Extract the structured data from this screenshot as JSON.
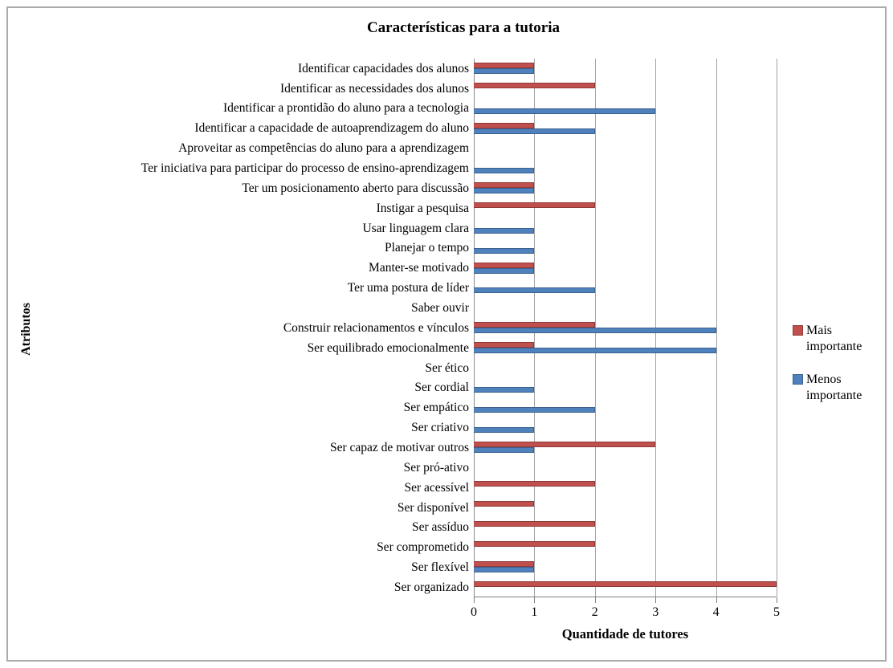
{
  "frame": {
    "background": "#ffffff",
    "border_color": "#ababab",
    "gridline_color": "#a3a3a3",
    "axis_color": "#7f7f7f"
  },
  "chart_data": {
    "type": "bar",
    "orientation": "horizontal",
    "title": "Características para a tutoria",
    "xlabel": "Quantidade de tutores",
    "ylabel": "Atributos",
    "xlim": [
      0,
      5
    ],
    "xticks": [
      "0",
      "1",
      "2",
      "3",
      "4",
      "5"
    ],
    "grid": true,
    "legend_position": "right",
    "categories": [
      "Identificar capacidades dos alunos",
      "Identificar as necessidades dos alunos",
      "Identificar a prontidão do aluno para a tecnologia",
      "Identificar a capacidade de autoaprendizagem do aluno",
      "Aproveitar as competências do aluno para a aprendizagem",
      "Ter iniciativa para participar do processo de ensino-aprendizagem",
      "Ter um posicionamento aberto para discussão",
      "Instigar a pesquisa",
      "Usar linguagem clara",
      "Planejar o tempo",
      "Manter-se motivado",
      "Ter uma postura de líder",
      "Saber ouvir",
      "Construir relacionamentos e vínculos",
      "Ser equilibrado emocionalmente",
      "Ser ético",
      "Ser cordial",
      "Ser empático",
      "Ser criativo",
      "Ser capaz de motivar outros",
      "Ser pró-ativo",
      "Ser acessível",
      "Ser disponível",
      "Ser assíduo",
      "Ser comprometido",
      "Ser flexível",
      "Ser organizado"
    ],
    "series": [
      {
        "key": "mais-importante",
        "name": "Mais importante",
        "color": "#C0504D",
        "border_color": "#8e3b39",
        "values": [
          1,
          2,
          0,
          1,
          0,
          0,
          1,
          2,
          0,
          0,
          1,
          0,
          0,
          2,
          1,
          0,
          0,
          0,
          0,
          3,
          0,
          2,
          1,
          2,
          2,
          1,
          5
        ]
      },
      {
        "key": "menos-importante",
        "name": "Menos importante",
        "color": "#4F81BD",
        "border_color": "#3c618e",
        "values": [
          1,
          0,
          3,
          2,
          0,
          1,
          1,
          0,
          1,
          1,
          1,
          2,
          0,
          4,
          4,
          0,
          1,
          2,
          1,
          1,
          0,
          0,
          0,
          0,
          0,
          1,
          0
        ]
      }
    ]
  }
}
